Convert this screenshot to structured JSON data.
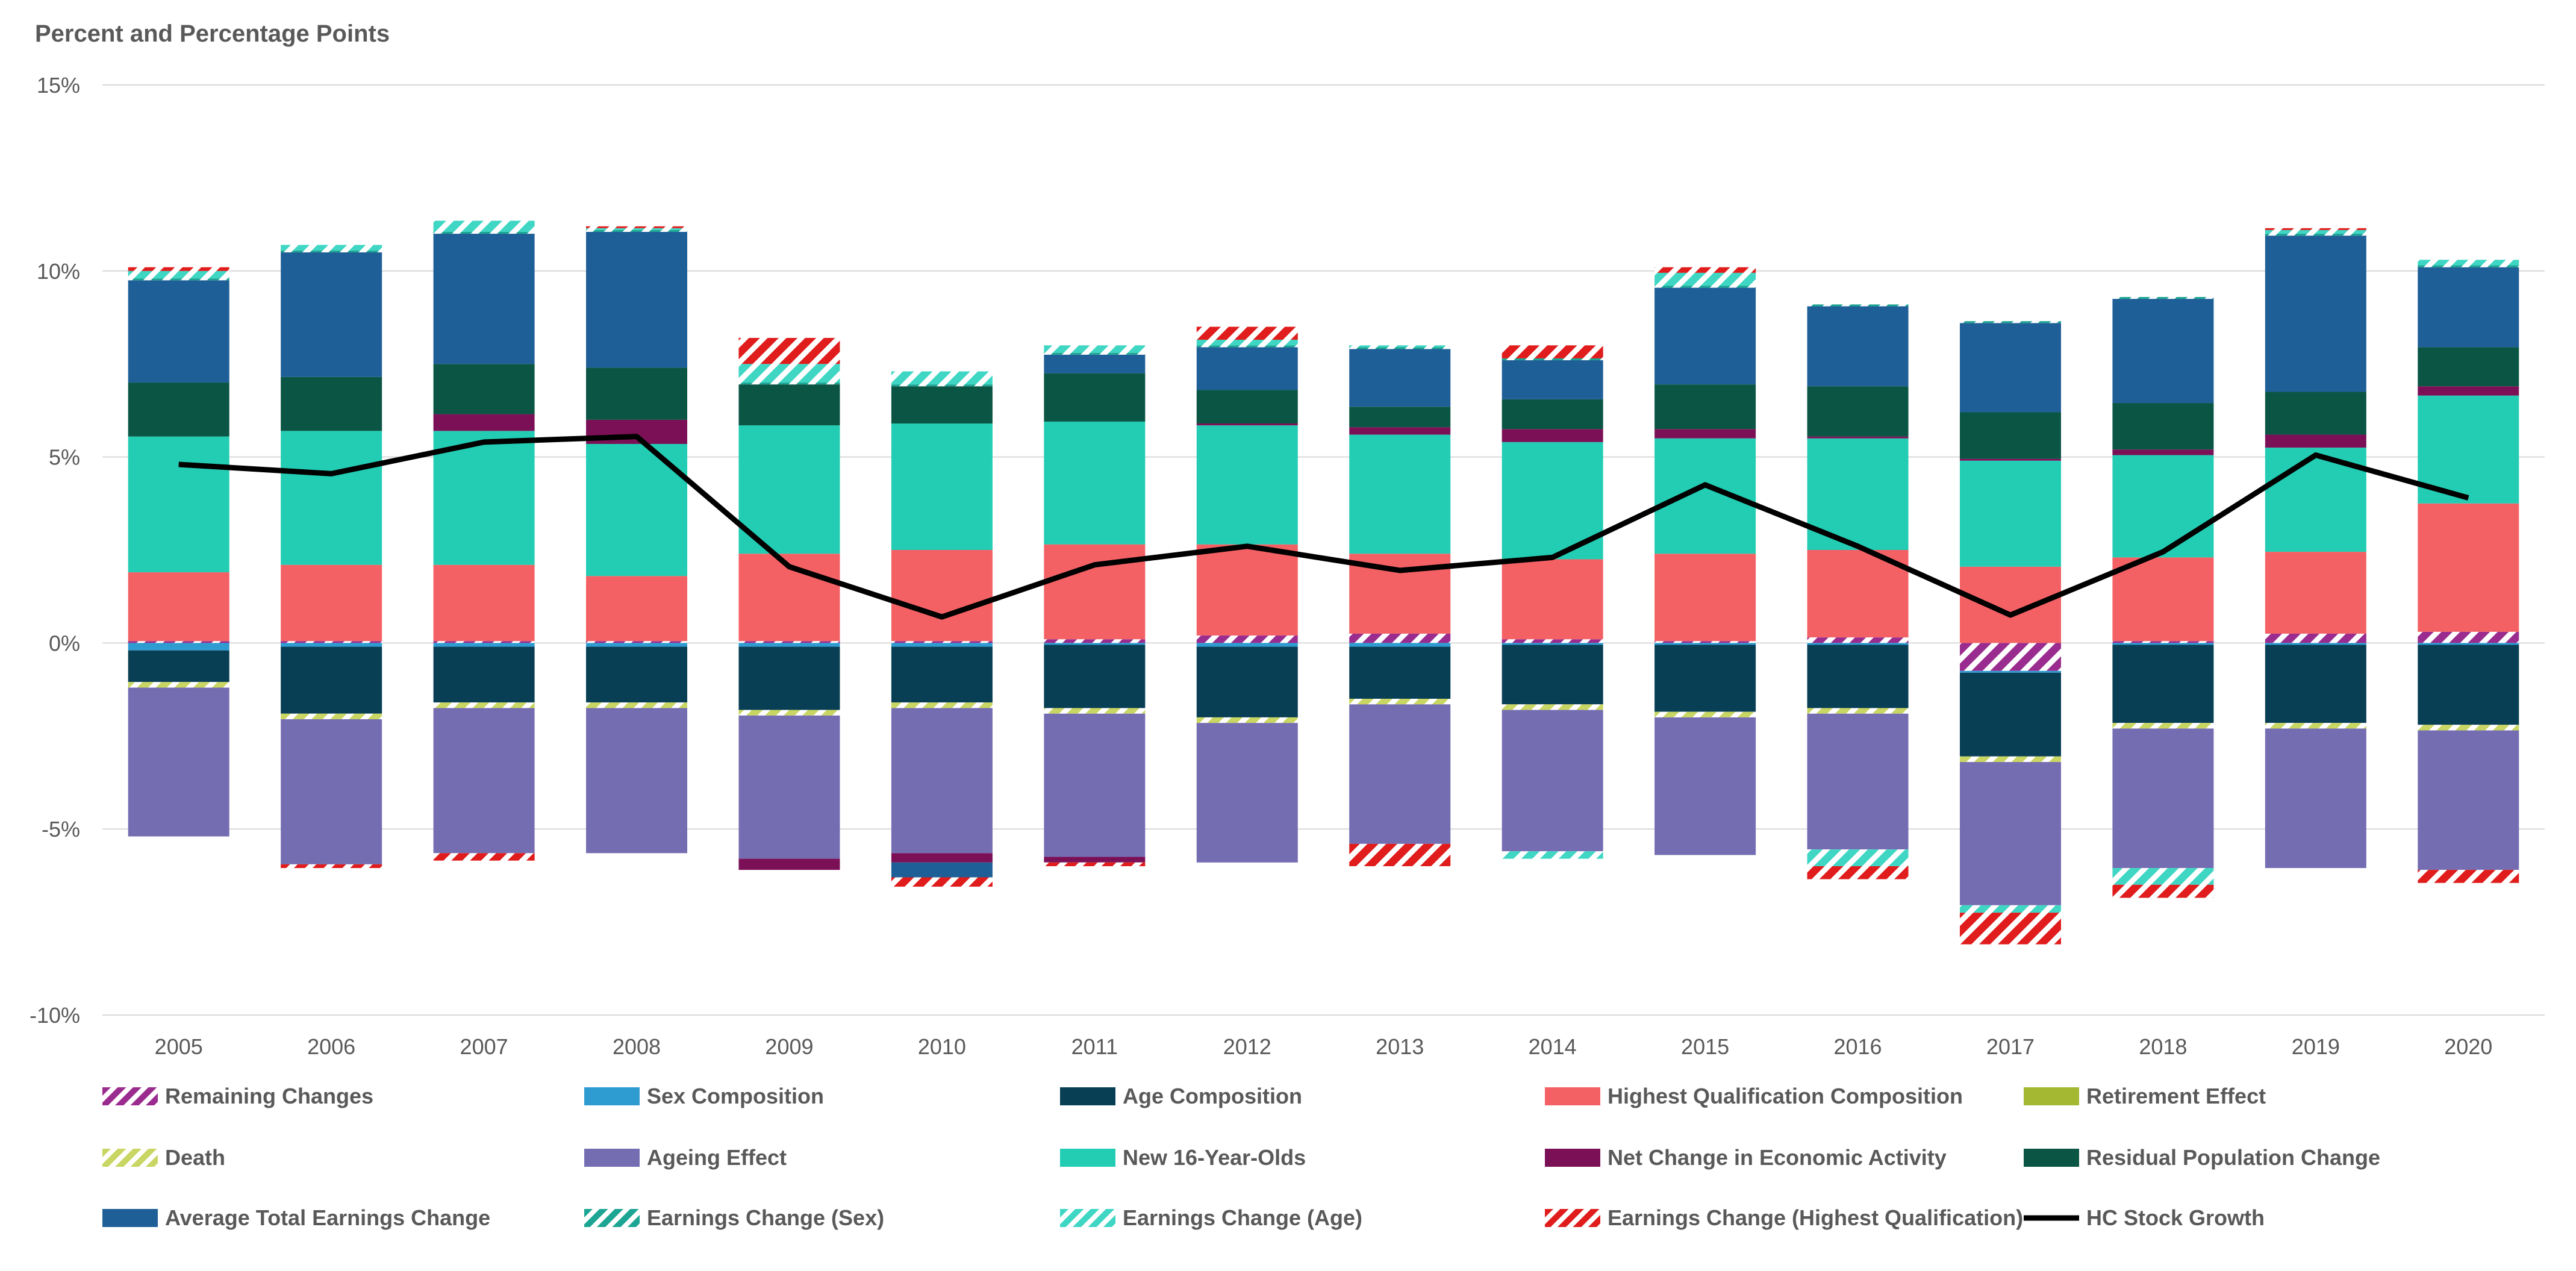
{
  "chart_data": {
    "type": "bar",
    "title": "Percent and Percentage Points",
    "ylim": [
      -10,
      15
    ],
    "yticks": [
      15,
      10,
      5,
      0,
      -5,
      -10
    ],
    "ytick_labels": [
      "15%",
      "10%",
      "5%",
      "0%",
      "-5%",
      "-10%"
    ],
    "grid": true,
    "legend_position": "bottom",
    "categories": [
      "2005",
      "2006",
      "2007",
      "2008",
      "2009",
      "2010",
      "2011",
      "2012",
      "2013",
      "2014",
      "2015",
      "2016",
      "2017",
      "2018",
      "2019",
      "2020"
    ],
    "series": [
      {
        "name": "Remaining Changes",
        "color": "#9b2c8f",
        "pattern": "hatch",
        "values": [
          0.05,
          0.05,
          0.05,
          0.05,
          0.05,
          0.05,
          0.1,
          0.2,
          0.25,
          0.1,
          0.05,
          0.15,
          -0.75,
          0.05,
          0.25,
          0.3
        ]
      },
      {
        "name": "Sex Composition",
        "color": "#2e9bd1",
        "pattern": "solid",
        "values": [
          -0.2,
          -0.1,
          -0.1,
          -0.1,
          -0.1,
          -0.1,
          -0.05,
          -0.1,
          -0.1,
          -0.05,
          -0.05,
          -0.05,
          -0.05,
          -0.05,
          -0.05,
          -0.05
        ]
      },
      {
        "name": "Age Composition",
        "color": "#083f55",
        "pattern": "solid",
        "values": [
          -0.85,
          -1.8,
          -1.5,
          -1.5,
          -1.7,
          -1.5,
          -1.7,
          -1.9,
          -1.4,
          -1.6,
          -1.8,
          -1.7,
          -2.25,
          -2.1,
          -2.1,
          -2.15
        ]
      },
      {
        "name": "Highest Qualification Composition",
        "color": "#f46165",
        "pattern": "solid",
        "values": [
          1.85,
          2.05,
          2.05,
          1.75,
          2.35,
          2.45,
          2.55,
          2.45,
          2.15,
          2.15,
          2.35,
          2.35,
          2.05,
          2.25,
          2.2,
          3.45
        ]
      },
      {
        "name": "Retirement Effect",
        "color": "#a4b832",
        "pattern": "solid",
        "values": [
          0,
          0,
          0,
          0,
          0,
          0,
          0,
          0,
          0,
          0,
          0,
          0,
          0,
          0,
          0,
          0
        ]
      },
      {
        "name": "Death",
        "color": "#c9d663",
        "pattern": "hatch",
        "values": [
          -0.15,
          -0.15,
          -0.15,
          -0.15,
          -0.15,
          -0.15,
          -0.15,
          -0.15,
          -0.15,
          -0.15,
          -0.15,
          -0.15,
          -0.15,
          -0.15,
          -0.15,
          -0.15
        ]
      },
      {
        "name": "Ageing Effect",
        "color": "#756db2",
        "pattern": "solid",
        "values": [
          -4.0,
          -3.9,
          -3.9,
          -3.9,
          -3.85,
          -3.9,
          -3.85,
          -3.75,
          -3.75,
          -3.8,
          -3.7,
          -3.65,
          -3.85,
          -3.75,
          -3.75,
          -3.75
        ]
      },
      {
        "name": "New 16-Year-Olds",
        "color": "#22cdb3",
        "pattern": "solid",
        "values": [
          3.65,
          3.6,
          3.6,
          3.55,
          3.45,
          3.4,
          3.3,
          3.2,
          3.2,
          3.15,
          3.1,
          3.0,
          2.85,
          2.75,
          2.8,
          2.9
        ]
      },
      {
        "name": "Net Change in Economic Activity",
        "color": "#7c1057",
        "pattern": "solid",
        "values": [
          0,
          0,
          0.45,
          0.65,
          -0.3,
          -0.25,
          -0.15,
          0.05,
          0.2,
          0.35,
          0.25,
          0.05,
          0.05,
          0.15,
          0.35,
          0.25
        ]
      },
      {
        "name": "Residual Population Change",
        "color": "#0a5544",
        "pattern": "solid",
        "values": [
          1.45,
          1.45,
          1.35,
          1.4,
          1.1,
          1.0,
          1.3,
          0.9,
          0.55,
          0.8,
          1.2,
          1.35,
          1.25,
          1.25,
          1.15,
          1.05
        ]
      },
      {
        "name": "Average Total Earnings Change",
        "color": "#1f5f97",
        "pattern": "solid",
        "values": [
          2.75,
          3.35,
          3.5,
          3.65,
          0,
          -0.4,
          0.5,
          1.15,
          1.55,
          1.05,
          2.6,
          2.15,
          2.4,
          2.8,
          4.2,
          2.15
        ]
      },
      {
        "name": "Earnings Change (Sex)",
        "color": "#1ba592",
        "pattern": "hatch",
        "values": [
          0.05,
          0.05,
          0.05,
          0.05,
          0.05,
          0.05,
          0.05,
          0.05,
          0.05,
          0.05,
          0.05,
          0.05,
          0.05,
          0.05,
          0.05,
          0.05
        ]
      },
      {
        "name": "Earnings Change (Age)",
        "color": "#3fd6c4",
        "pattern": "hatch",
        "values": [
          0.2,
          0.15,
          0.3,
          0.05,
          0.5,
          0.35,
          0.2,
          0.15,
          0.05,
          -0.2,
          0.35,
          -0.45,
          -0.2,
          -0.45,
          0.1,
          0.15
        ]
      },
      {
        "name": "Earnings Change (Highest Qualification)",
        "color": "#e01c1c",
        "pattern": "hatch",
        "values": [
          0.1,
          -0.1,
          -0.2,
          0.05,
          0.7,
          -0.25,
          -0.1,
          0.35,
          -0.6,
          0.35,
          0.15,
          -0.35,
          -0.85,
          -0.35,
          0.05,
          -0.35
        ]
      },
      {
        "name": "HC Stock Growth",
        "color": "#000000",
        "type": "line",
        "values": [
          4.8,
          4.55,
          5.4,
          5.55,
          2.05,
          0.7,
          2.1,
          2.6,
          1.95,
          2.3,
          4.25,
          2.6,
          0.75,
          2.45,
          5.05,
          3.9
        ]
      }
    ]
  }
}
